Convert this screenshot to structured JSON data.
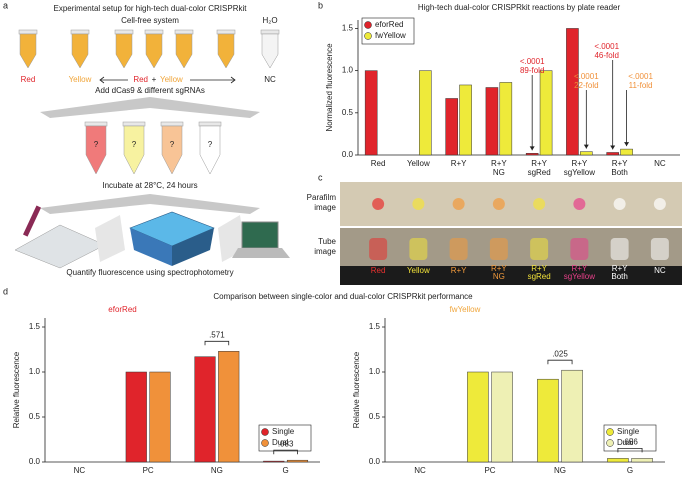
{
  "panel_labels": [
    "a",
    "b",
    "c",
    "d"
  ],
  "panel_a": {
    "title": "Experimental setup for high-tech dual-color CRISPRkit",
    "system": "Cell-free system",
    "water": "H₂O",
    "tube_labels": [
      "Red",
      "Yellow",
      "Red",
      "+",
      "Yellow",
      "NC"
    ],
    "steps": [
      "Add dCas9 & different sgRNAs",
      "Incubate at 28°C, 24 hours",
      "Quantify fluorescence using spectrophotometry"
    ],
    "unknown": "?"
  },
  "panel_c": {
    "rows": [
      [
        "Parafilm",
        "image"
      ],
      [
        "Tube",
        "image"
      ]
    ],
    "labels": [
      [
        "Red"
      ],
      [
        "Yellow"
      ],
      [
        "R+Y"
      ],
      [
        "R+Y",
        "NG"
      ],
      [
        "R+Y",
        "sgRed"
      ],
      [
        "R+Y",
        "sgYellow"
      ],
      [
        "R+Y",
        "Both"
      ],
      [
        "NC"
      ]
    ],
    "label_colors": [
      "#e8312f",
      "#f3e33a",
      "#f29a3c",
      "#f29a3c",
      "#f3e33a",
      "#e8408a",
      "#ffffff",
      "#ffffff"
    ]
  },
  "panel_d": {
    "title": "Comparison between single-color and dual-color CRISPRkit performance"
  },
  "chart_data": [
    {
      "type": "bar",
      "title": "High-tech dual-color CRISPRkit reactions by plate reader",
      "y_label": "Normalized fluorescence",
      "categories": [
        [
          "Red"
        ],
        [
          "Yellow"
        ],
        [
          "R+Y"
        ],
        [
          "R+Y",
          "NG"
        ],
        [
          "R+Y",
          "sgRed"
        ],
        [
          "R+Y",
          "sgYellow"
        ],
        [
          "R+Y",
          "Both"
        ],
        [
          "NC"
        ]
      ],
      "series": [
        {
          "name": "eforRed",
          "color": "#e0242b",
          "values": [
            1.0,
            0.0,
            0.67,
            0.8,
            0.02,
            1.5,
            0.03,
            0.0
          ]
        },
        {
          "name": "fwYellow",
          "color": "#eeea3a",
          "values": [
            0.0,
            1.0,
            0.83,
            0.86,
            1.0,
            0.04,
            0.07,
            0.0
          ]
        }
      ],
      "ylim": [
        0,
        1.6
      ],
      "yticks": [
        {
          "value": 0,
          "label": "0.0"
        },
        {
          "value": 0.5,
          "label": "0.5"
        },
        {
          "value": 1,
          "label": "1.0"
        },
        {
          "value": 1.5,
          "label": "1.5"
        }
      ],
      "legend": "upper left",
      "annotations": [
        {
          "lines": [
            "<.0001",
            "89-fold"
          ],
          "color": "#e0242b"
        },
        {
          "lines": [
            "<.0001",
            "22-fold"
          ],
          "color": "#f0913a"
        },
        {
          "lines": [
            "<.0001",
            "46-fold"
          ],
          "color": "#e0242b"
        },
        {
          "lines": [
            "<.0001",
            "11-fold"
          ],
          "color": "#f0913a"
        }
      ]
    },
    {
      "type": "bar",
      "subtitle": "eforRed",
      "subtitle_color": "#e0242b",
      "y_label": "Relative fluorescence",
      "categories": [
        [
          "NC"
        ],
        [
          "PC"
        ],
        [
          "NG"
        ],
        [
          "G"
        ]
      ],
      "series": [
        {
          "name": "Single",
          "color": "#e0242b",
          "values": [
            0.0,
            1.0,
            1.17,
            0.01
          ]
        },
        {
          "name": "Dual",
          "color": "#f0913a",
          "values": [
            0.0,
            1.0,
            1.23,
            0.02
          ]
        }
      ],
      "ylim": [
        0,
        1.6
      ],
      "yticks": [
        {
          "value": 0,
          "label": "0.0"
        },
        {
          "value": 0.5,
          "label": "0.5"
        },
        {
          "value": 1,
          "label": "1.0"
        },
        {
          "value": 1.5,
          "label": "1.5"
        }
      ],
      "legend": "lower right",
      "annotations": [
        ".571",
        ".083"
      ]
    },
    {
      "type": "bar",
      "subtitle": "fwYellow",
      "subtitle_color": "#f0a53a",
      "y_label": "Relative fluorescence",
      "categories": [
        [
          "NC"
        ],
        [
          "PC"
        ],
        [
          "NG"
        ],
        [
          "G"
        ]
      ],
      "series": [
        {
          "name": "Single",
          "color": "#eeea3a",
          "values": [
            0.0,
            1.0,
            0.92,
            0.04
          ]
        },
        {
          "name": "Dual",
          "color": "#eef0b4",
          "values": [
            0.0,
            1.0,
            1.02,
            0.04
          ]
        }
      ],
      "ylim": [
        0,
        1.6
      ],
      "yticks": [
        {
          "value": 0,
          "label": "0.0"
        },
        {
          "value": 0.5,
          "label": "0.5"
        },
        {
          "value": 1,
          "label": "1.0"
        },
        {
          "value": 1.5,
          "label": "1.5"
        }
      ],
      "legend": "lower right",
      "annotations": [
        ".025",
        ".656"
      ]
    }
  ]
}
